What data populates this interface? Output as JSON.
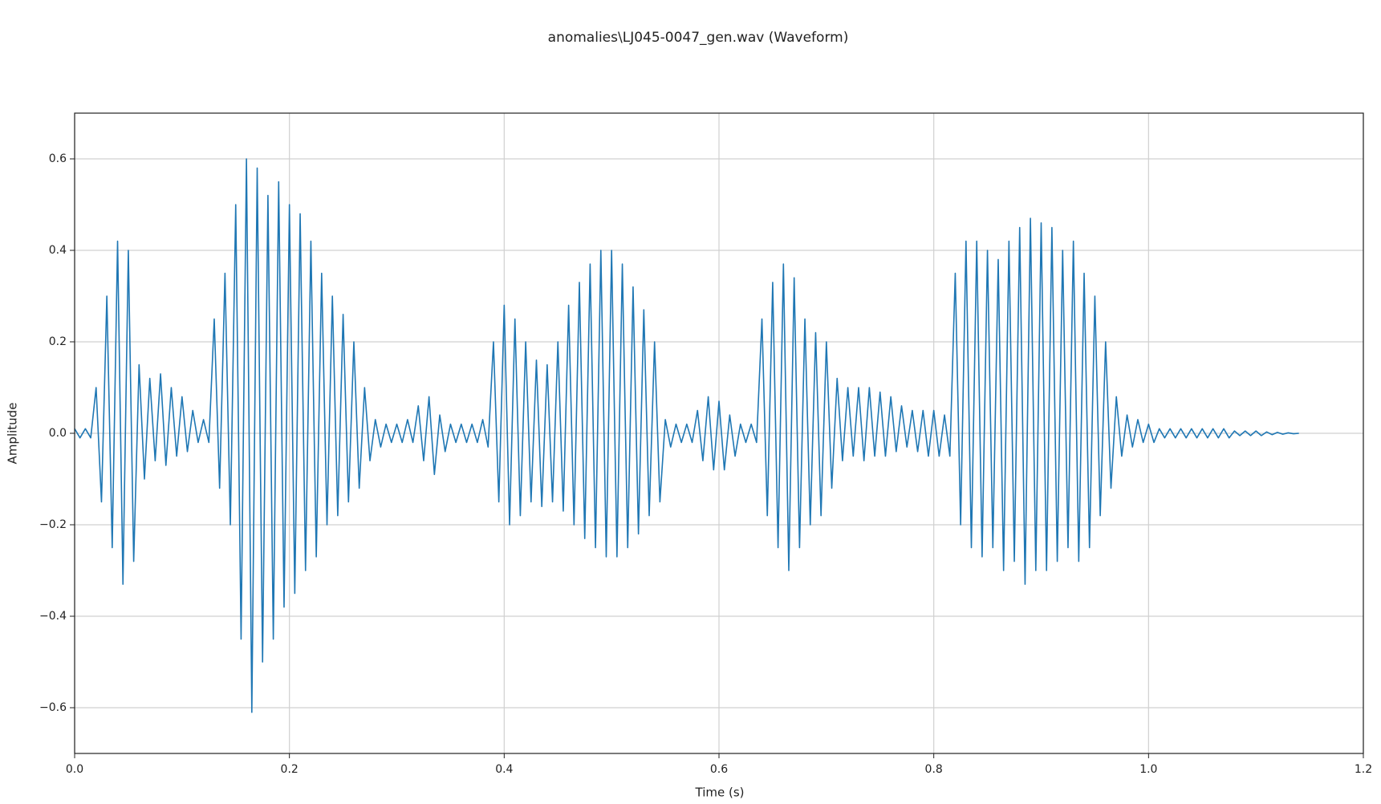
{
  "chart_data": {
    "type": "line",
    "title": "anomalies\\LJ045-0047_gen.wav (Waveform)",
    "xlabel": "Time (s)",
    "ylabel": "Amplitude",
    "xlim": [
      0,
      1.2
    ],
    "ylim": [
      -0.7,
      0.7
    ],
    "xticks": [
      {
        "value": 0,
        "label": "0.0"
      },
      0.2,
      0.4,
      0.6,
      0.8,
      {
        "value": 1,
        "label": "1.0"
      },
      1.2
    ],
    "yticks": [
      {
        "value": -0.6,
        "label": "−0.6"
      },
      {
        "value": -0.4,
        "label": "−0.4"
      },
      {
        "value": -0.2,
        "label": "−0.2"
      },
      {
        "value": 0,
        "label": "0.0"
      },
      0.2,
      0.4,
      0.6
    ],
    "grid": true,
    "color": "#1f77b4",
    "x": [
      0,
      0.005,
      0.01,
      0.015,
      0.02,
      0.025,
      0.03,
      0.035,
      0.04,
      0.045,
      0.05,
      0.055,
      0.06,
      0.065,
      0.07,
      0.075,
      0.08,
      0.085,
      0.09,
      0.095,
      0.1,
      0.105,
      0.11,
      0.115,
      0.12,
      0.125,
      0.13,
      0.135,
      0.14,
      0.145,
      0.15,
      0.155,
      0.16,
      0.165,
      0.17,
      0.175,
      0.18,
      0.185,
      0.19,
      0.195,
      0.2,
      0.205,
      0.21,
      0.215,
      0.22,
      0.225,
      0.23,
      0.235,
      0.24,
      0.245,
      0.25,
      0.255,
      0.26,
      0.265,
      0.27,
      0.275,
      0.28,
      0.285,
      0.29,
      0.295,
      0.3,
      0.305,
      0.31,
      0.315,
      0.32,
      0.325,
      0.33,
      0.335,
      0.34,
      0.345,
      0.35,
      0.355,
      0.36,
      0.365,
      0.37,
      0.375,
      0.38,
      0.385,
      0.39,
      0.395,
      0.4,
      0.405,
      0.41,
      0.415,
      0.42,
      0.425,
      0.43,
      0.435,
      0.44,
      0.445,
      0.45,
      0.455,
      0.46,
      0.465,
      0.47,
      0.475,
      0.48,
      0.485,
      0.49,
      0.495,
      0.5,
      0.505,
      0.51,
      0.515,
      0.52,
      0.525,
      0.53,
      0.535,
      0.54,
      0.545,
      0.55,
      0.555,
      0.56,
      0.565,
      0.57,
      0.575,
      0.58,
      0.585,
      0.59,
      0.595,
      0.6,
      0.605,
      0.61,
      0.615,
      0.62,
      0.625,
      0.63,
      0.635,
      0.64,
      0.645,
      0.65,
      0.655,
      0.66,
      0.665,
      0.67,
      0.675,
      0.68,
      0.685,
      0.69,
      0.695,
      0.7,
      0.705,
      0.71,
      0.715,
      0.72,
      0.725,
      0.73,
      0.735,
      0.74,
      0.745,
      0.75,
      0.755,
      0.76,
      0.765,
      0.77,
      0.775,
      0.78,
      0.785,
      0.79,
      0.795,
      0.8,
      0.805,
      0.81,
      0.815,
      0.82,
      0.825,
      0.83,
      0.835,
      0.84,
      0.845,
      0.85,
      0.855,
      0.86,
      0.865,
      0.87,
      0.875,
      0.88,
      0.885,
      0.89,
      0.895,
      0.9,
      0.905,
      0.91,
      0.915,
      0.92,
      0.925,
      0.93,
      0.935,
      0.94,
      0.945,
      0.95,
      0.955,
      0.96,
      0.965,
      0.97,
      0.975,
      0.98,
      0.985,
      0.99,
      0.995,
      1,
      1.005,
      1.01,
      1.015,
      1.02,
      1.025,
      1.03,
      1.035,
      1.04,
      1.045,
      1.05,
      1.055,
      1.06,
      1.065,
      1.07,
      1.075,
      1.08,
      1.085,
      1.09,
      1.095,
      1.1,
      1.105,
      1.11,
      1.115,
      1.12,
      1.125,
      1.13,
      1.135,
      1.14
    ],
    "values": [
      0.01,
      -0.01,
      0.01,
      -0.01,
      0.1,
      -0.15,
      0.3,
      -0.25,
      0.42,
      -0.33,
      0.4,
      -0.28,
      0.15,
      -0.1,
      0.12,
      -0.06,
      0.13,
      -0.07,
      0.1,
      -0.05,
      0.08,
      -0.04,
      0.05,
      -0.02,
      0.03,
      -0.02,
      0.25,
      -0.12,
      0.35,
      -0.2,
      0.5,
      -0.45,
      0.6,
      -0.61,
      0.58,
      -0.5,
      0.52,
      -0.45,
      0.55,
      -0.38,
      0.5,
      -0.35,
      0.48,
      -0.3,
      0.42,
      -0.27,
      0.35,
      -0.2,
      0.3,
      -0.18,
      0.26,
      -0.15,
      0.2,
      -0.12,
      0.1,
      -0.06,
      0.03,
      -0.03,
      0.02,
      -0.02,
      0.02,
      -0.02,
      0.03,
      -0.02,
      0.06,
      -0.06,
      0.08,
      -0.09,
      0.04,
      -0.04,
      0.02,
      -0.02,
      0.02,
      -0.02,
      0.02,
      -0.02,
      0.03,
      -0.03,
      0.2,
      -0.15,
      0.28,
      -0.2,
      0.25,
      -0.18,
      0.2,
      -0.15,
      0.16,
      -0.16,
      0.15,
      -0.15,
      0.2,
      -0.17,
      0.28,
      -0.2,
      0.33,
      -0.23,
      0.37,
      -0.25,
      0.4,
      -0.27,
      0.4,
      -0.27,
      0.37,
      -0.25,
      0.32,
      -0.22,
      0.27,
      -0.18,
      0.2,
      -0.15,
      0.03,
      -0.03,
      0.02,
      -0.02,
      0.02,
      -0.02,
      0.05,
      -0.06,
      0.08,
      -0.08,
      0.07,
      -0.08,
      0.04,
      -0.05,
      0.02,
      -0.02,
      0.02,
      -0.02,
      0.25,
      -0.18,
      0.33,
      -0.25,
      0.37,
      -0.3,
      0.34,
      -0.25,
      0.25,
      -0.2,
      0.22,
      -0.18,
      0.2,
      -0.12,
      0.12,
      -0.06,
      0.1,
      -0.05,
      0.1,
      -0.06,
      0.1,
      -0.05,
      0.09,
      -0.05,
      0.08,
      -0.04,
      0.06,
      -0.03,
      0.05,
      -0.04,
      0.05,
      -0.05,
      0.05,
      -0.05,
      0.04,
      -0.05,
      0.35,
      -0.2,
      0.42,
      -0.25,
      0.42,
      -0.27,
      0.4,
      -0.25,
      0.38,
      -0.3,
      0.42,
      -0.28,
      0.45,
      -0.33,
      0.47,
      -0.3,
      0.46,
      -0.3,
      0.45,
      -0.28,
      0.4,
      -0.25,
      0.42,
      -0.28,
      0.35,
      -0.25,
      0.3,
      -0.18,
      0.2,
      -0.12,
      0.08,
      -0.05,
      0.04,
      -0.03,
      0.03,
      -0.02,
      0.02,
      -0.02,
      0.01,
      -0.01,
      0.01,
      -0.01,
      0.01,
      -0.01,
      0.01,
      -0.01,
      0.01,
      -0.01,
      0.01,
      -0.01,
      0.01,
      -0.01,
      0.005,
      -0.005,
      0.005,
      -0.005,
      0.005,
      -0.005,
      0.003,
      -0.003,
      0.002,
      -0.002,
      0.001,
      -0.001,
      0
    ]
  }
}
